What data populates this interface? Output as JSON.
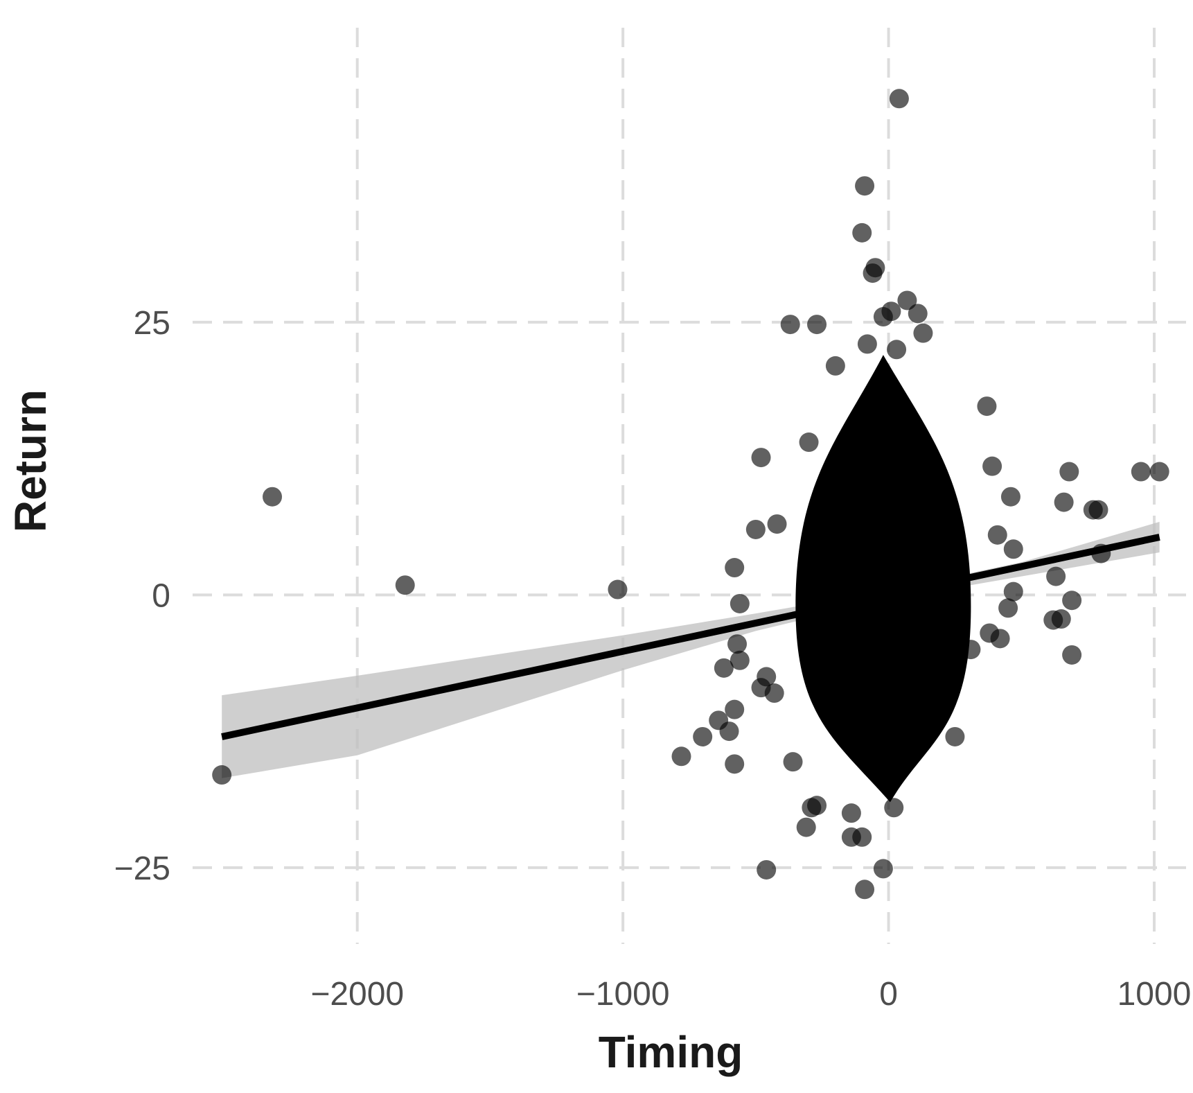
{
  "chart_data": {
    "type": "scatter",
    "title": "",
    "xlabel": "Timing",
    "ylabel": "Return",
    "xlim": [
      -2620,
      1120
    ],
    "ylim": [
      -32,
      52
    ],
    "x_ticks": [
      -2000,
      -1000,
      0,
      1000
    ],
    "x_tick_labels": [
      "−2000",
      "−1000",
      "0",
      "1000"
    ],
    "y_ticks": [
      -25,
      0,
      25
    ],
    "y_tick_labels": [
      "−25",
      "0",
      "25"
    ],
    "grid": true,
    "legend": "none",
    "point_color": "#000000",
    "band_color": "#bfbfbf",
    "dense_cluster": {
      "description_shape": "diamond",
      "x_center": -20,
      "x_halfwidth": 330,
      "y_top": 22,
      "y_bottom": -19
    },
    "points": [
      {
        "x": 40,
        "y": 45.5
      },
      {
        "x": -90,
        "y": 37.5
      },
      {
        "x": -100,
        "y": 33.2
      },
      {
        "x": -50,
        "y": 30
      },
      {
        "x": -60,
        "y": 29.5
      },
      {
        "x": 70,
        "y": 27
      },
      {
        "x": 10,
        "y": 26
      },
      {
        "x": 110,
        "y": 25.8
      },
      {
        "x": -20,
        "y": 25.5
      },
      {
        "x": -370,
        "y": 24.8
      },
      {
        "x": -270,
        "y": 24.8
      },
      {
        "x": 130,
        "y": 24
      },
      {
        "x": 30,
        "y": 22.5
      },
      {
        "x": -80,
        "y": 23
      },
      {
        "x": -200,
        "y": 21
      },
      {
        "x": 370,
        "y": 17.3
      },
      {
        "x": -300,
        "y": 14
      },
      {
        "x": -480,
        "y": 12.6
      },
      {
        "x": 390,
        "y": 11.8
      },
      {
        "x": 680,
        "y": 11.3
      },
      {
        "x": 950,
        "y": 11.3
      },
      {
        "x": 1020,
        "y": 11.3
      },
      {
        "x": -2320,
        "y": 9
      },
      {
        "x": 460,
        "y": 9
      },
      {
        "x": 660,
        "y": 8.5
      },
      {
        "x": 770,
        "y": 7.8
      },
      {
        "x": 790,
        "y": 7.8
      },
      {
        "x": -420,
        "y": 6.5
      },
      {
        "x": -500,
        "y": 6
      },
      {
        "x": 410,
        "y": 5.5
      },
      {
        "x": 470,
        "y": 4.2
      },
      {
        "x": 800,
        "y": 3.8
      },
      {
        "x": -580,
        "y": 2.5
      },
      {
        "x": 630,
        "y": 1.7
      },
      {
        "x": -1820,
        "y": 0.9
      },
      {
        "x": -1020,
        "y": 0.5
      },
      {
        "x": 470,
        "y": 0.3
      },
      {
        "x": 690,
        "y": -0.5
      },
      {
        "x": -560,
        "y": -0.8
      },
      {
        "x": 450,
        "y": -1.2
      },
      {
        "x": 620,
        "y": -2.3
      },
      {
        "x": 650,
        "y": -2.2
      },
      {
        "x": 380,
        "y": -3.5
      },
      {
        "x": 420,
        "y": -4
      },
      {
        "x": -570,
        "y": -4.5
      },
      {
        "x": -560,
        "y": -6
      },
      {
        "x": 310,
        "y": -5
      },
      {
        "x": 690,
        "y": -5.5
      },
      {
        "x": -620,
        "y": -6.7
      },
      {
        "x": -460,
        "y": -7.5
      },
      {
        "x": -480,
        "y": -8.5
      },
      {
        "x": -430,
        "y": -9
      },
      {
        "x": -580,
        "y": -10.5
      },
      {
        "x": -640,
        "y": -11.5
      },
      {
        "x": -600,
        "y": -12.5
      },
      {
        "x": -700,
        "y": -13
      },
      {
        "x": 250,
        "y": -13
      },
      {
        "x": -780,
        "y": -14.8
      },
      {
        "x": -580,
        "y": -15.5
      },
      {
        "x": -360,
        "y": -15.3
      },
      {
        "x": -2510,
        "y": -16.5
      },
      {
        "x": -290,
        "y": -19.5
      },
      {
        "x": -270,
        "y": -19.3
      },
      {
        "x": -140,
        "y": -20
      },
      {
        "x": 20,
        "y": -19.5
      },
      {
        "x": -310,
        "y": -21.3
      },
      {
        "x": -140,
        "y": -22.2
      },
      {
        "x": -100,
        "y": -22.2
      },
      {
        "x": -460,
        "y": -25.2
      },
      {
        "x": -20,
        "y": -25.1
      },
      {
        "x": -90,
        "y": -27
      }
    ],
    "fit_line": {
      "x": [
        -2510,
        1020
      ],
      "y": [
        -13,
        5.3
      ]
    },
    "confidence_band": {
      "x": [
        -2510,
        -2000,
        -1000,
        -500,
        0,
        500,
        1020
      ],
      "y_upper": [
        -9.2,
        -7.4,
        -3.7,
        -1.7,
        0.4,
        3.0,
        6.7
      ],
      "y_lower": [
        -16.8,
        -14.7,
        -6.9,
        -3.3,
        -0.4,
        1.7,
        3.9
      ]
    }
  }
}
